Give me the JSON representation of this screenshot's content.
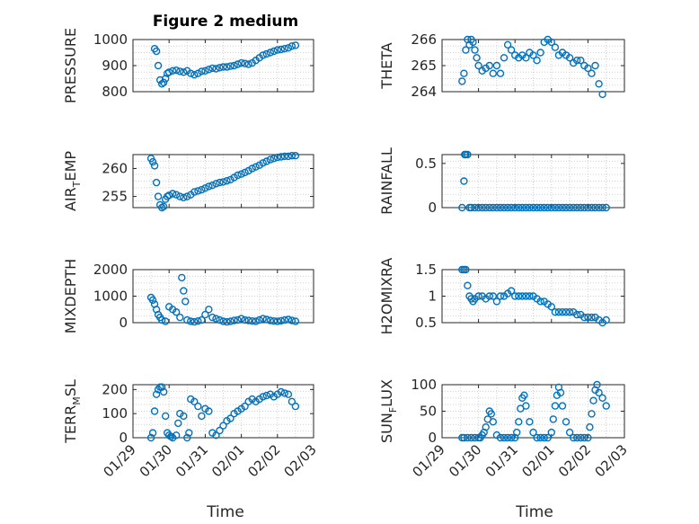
{
  "figure": {
    "title": "Figure 2 medium",
    "xlabel": "Time"
  },
  "colors": {
    "marker": "#0072bd",
    "axis": "#262626",
    "grid": "#d0d0d0"
  },
  "chart_data": [
    {
      "type": "scatter",
      "key": "pressure",
      "ylabel": "PRESSURE",
      "ylim": [
        800,
        1000
      ],
      "yticks": [
        "800",
        "900",
        "1000"
      ],
      "yticks_values": [
        800,
        900,
        1000
      ],
      "xlim": [
        0,
        5
      ],
      "xticks": [
        "01/29",
        "01/30",
        "01/31",
        "02/01",
        "02/02",
        "02/03"
      ],
      "show_xticks": false,
      "x": [
        0.6,
        0.65,
        0.7,
        0.75,
        0.8,
        0.85,
        0.9,
        0.95,
        1.0,
        1.1,
        1.2,
        1.3,
        1.4,
        1.5,
        1.6,
        1.7,
        1.8,
        1.9,
        2.0,
        2.1,
        2.2,
        2.3,
        2.4,
        2.5,
        2.6,
        2.7,
        2.8,
        2.9,
        3.0,
        3.1,
        3.2,
        3.3,
        3.4,
        3.5,
        3.6,
        3.7,
        3.8,
        3.9,
        4.0,
        4.1,
        4.2,
        4.3,
        4.4,
        4.5
      ],
      "y": [
        965,
        955,
        900,
        845,
        830,
        835,
        850,
        870,
        875,
        880,
        882,
        878,
        875,
        880,
        870,
        865,
        870,
        878,
        880,
        885,
        890,
        888,
        892,
        895,
        895,
        898,
        900,
        905,
        910,
        908,
        905,
        910,
        920,
        930,
        940,
        945,
        950,
        955,
        960,
        962,
        965,
        968,
        975,
        978
      ]
    },
    {
      "type": "scatter",
      "key": "theta",
      "ylabel": "THETA",
      "ylim": [
        264,
        266
      ],
      "yticks": [
        "264",
        "265",
        "266"
      ],
      "yticks_values": [
        264,
        265,
        266
      ],
      "xlim": [
        0,
        5
      ],
      "xticks": [
        "01/29",
        "01/30",
        "01/31",
        "02/01",
        "02/02",
        "02/03"
      ],
      "show_xticks": false,
      "x": [
        0.55,
        0.6,
        0.65,
        0.7,
        0.75,
        0.8,
        0.85,
        0.9,
        0.95,
        1.0,
        1.1,
        1.2,
        1.3,
        1.4,
        1.5,
        1.6,
        1.7,
        1.8,
        1.9,
        2.0,
        2.1,
        2.2,
        2.3,
        2.4,
        2.5,
        2.6,
        2.7,
        2.8,
        2.9,
        3.0,
        3.1,
        3.2,
        3.3,
        3.4,
        3.5,
        3.6,
        3.7,
        3.8,
        3.9,
        4.0,
        4.1,
        4.2,
        4.3,
        4.4
      ],
      "y": [
        264.4,
        264.7,
        265.6,
        266.0,
        265.8,
        266.0,
        265.9,
        265.6,
        265.3,
        265.0,
        264.8,
        264.9,
        265.0,
        264.7,
        265.0,
        264.7,
        265.3,
        265.8,
        265.6,
        265.4,
        265.3,
        265.4,
        265.3,
        265.5,
        265.4,
        265.2,
        265.5,
        265.9,
        266.0,
        265.9,
        265.7,
        265.4,
        265.5,
        265.4,
        265.3,
        265.1,
        265.2,
        265.2,
        265.0,
        264.9,
        264.7,
        265.0,
        264.3,
        263.9
      ]
    },
    {
      "type": "scatter",
      "key": "air_temp",
      "ylabel": "AIR_TEMP",
      "ylabel_main": "AIR",
      "ylabel_sub": "T",
      "ylabel_rest": "EMP",
      "ylim": [
        253,
        262
      ],
      "yticks": [
        "255",
        "260"
      ],
      "yticks_values": [
        255,
        260
      ],
      "xlim": [
        0,
        5
      ],
      "xticks": [
        "01/29",
        "01/30",
        "01/31",
        "02/01",
        "02/02",
        "02/03"
      ],
      "show_xticks": false,
      "x": [
        0.5,
        0.55,
        0.6,
        0.65,
        0.7,
        0.75,
        0.8,
        0.85,
        0.9,
        0.95,
        1.0,
        1.1,
        1.2,
        1.3,
        1.4,
        1.5,
        1.6,
        1.7,
        1.8,
        1.9,
        2.0,
        2.1,
        2.2,
        2.3,
        2.4,
        2.5,
        2.6,
        2.7,
        2.8,
        2.9,
        3.0,
        3.1,
        3.2,
        3.3,
        3.4,
        3.5,
        3.6,
        3.7,
        3.8,
        3.9,
        4.0,
        4.1,
        4.2,
        4.3,
        4.4,
        4.5
      ],
      "y": [
        261.8,
        261.2,
        260.5,
        257.5,
        255.0,
        253.5,
        253.0,
        253.2,
        254.5,
        255.0,
        255.2,
        255.5,
        255.3,
        255.0,
        254.8,
        255.0,
        255.3,
        255.8,
        256.0,
        256.2,
        256.5,
        256.8,
        257.0,
        257.3,
        257.5,
        257.6,
        257.8,
        258.0,
        258.4,
        258.8,
        259.0,
        259.3,
        259.6,
        260.0,
        260.3,
        260.6,
        261.0,
        261.3,
        261.6,
        261.8,
        262.0,
        262.1,
        262.2,
        262.2,
        262.3,
        262.3
      ]
    },
    {
      "type": "scatter",
      "key": "rainfall",
      "ylabel": "RAINFALL",
      "ylim": [
        0,
        0.6
      ],
      "yticks": [
        "0",
        "0.5"
      ],
      "yticks_values": [
        0,
        0.5
      ],
      "xlim": [
        0,
        5
      ],
      "xticks": [
        "01/29",
        "01/30",
        "01/31",
        "02/01",
        "02/02",
        "02/03"
      ],
      "show_xticks": false,
      "x": [
        0.55,
        0.6,
        0.62,
        0.65,
        0.7,
        0.75,
        0.8,
        0.9,
        1.0,
        1.1,
        1.2,
        1.3,
        1.4,
        1.5,
        1.6,
        1.7,
        1.8,
        1.9,
        2.0,
        2.1,
        2.2,
        2.3,
        2.4,
        2.5,
        2.6,
        2.7,
        2.8,
        2.9,
        3.0,
        3.1,
        3.2,
        3.3,
        3.4,
        3.5,
        3.6,
        3.7,
        3.8,
        3.9,
        4.0,
        4.1,
        4.2,
        4.3,
        4.4,
        4.5
      ],
      "y": [
        0,
        0.3,
        0.6,
        0.6,
        0.6,
        0,
        0,
        0,
        0,
        0,
        0,
        0,
        0,
        0,
        0,
        0,
        0,
        0,
        0,
        0,
        0,
        0,
        0,
        0,
        0,
        0,
        0,
        0,
        0,
        0,
        0,
        0,
        0,
        0,
        0,
        0,
        0,
        0,
        0,
        0,
        0,
        0,
        0,
        0
      ]
    },
    {
      "type": "scatter",
      "key": "mixdepth",
      "ylabel": "MIXDEPTH",
      "ylim": [
        0,
        2000
      ],
      "yticks": [
        "0",
        "1000",
        "2000"
      ],
      "yticks_values": [
        0,
        1000,
        2000
      ],
      "xlim": [
        0,
        5
      ],
      "xticks": [
        "01/29",
        "01/30",
        "01/31",
        "02/01",
        "02/02",
        "02/03"
      ],
      "show_xticks": false,
      "x": [
        0.5,
        0.55,
        0.6,
        0.65,
        0.7,
        0.75,
        0.8,
        0.9,
        1.0,
        1.1,
        1.2,
        1.3,
        1.35,
        1.4,
        1.45,
        1.5,
        1.6,
        1.7,
        1.8,
        1.9,
        2.0,
        2.1,
        2.2,
        2.3,
        2.4,
        2.5,
        2.6,
        2.7,
        2.8,
        2.9,
        3.0,
        3.1,
        3.2,
        3.3,
        3.4,
        3.5,
        3.6,
        3.7,
        3.8,
        3.9,
        4.0,
        4.1,
        4.2,
        4.3,
        4.4,
        4.5
      ],
      "y": [
        950,
        850,
        700,
        500,
        300,
        200,
        100,
        50,
        600,
        500,
        400,
        200,
        1700,
        1200,
        800,
        100,
        50,
        30,
        60,
        100,
        300,
        500,
        200,
        150,
        100,
        50,
        30,
        50,
        80,
        100,
        150,
        100,
        80,
        60,
        50,
        100,
        150,
        120,
        80,
        60,
        50,
        70,
        100,
        120,
        80,
        50
      ]
    },
    {
      "type": "scatter",
      "key": "h2omixra",
      "ylabel": "H2OMIXRA",
      "ylim": [
        0.5,
        1.5
      ],
      "yticks": [
        "0.5",
        "1",
        "1.5"
      ],
      "yticks_values": [
        0.5,
        1,
        1.5
      ],
      "xlim": [
        0,
        5
      ],
      "xticks": [
        "01/29",
        "01/30",
        "01/31",
        "02/01",
        "02/02",
        "02/03"
      ],
      "show_xticks": false,
      "x": [
        0.55,
        0.6,
        0.65,
        0.7,
        0.75,
        0.8,
        0.85,
        0.9,
        1.0,
        1.1,
        1.2,
        1.3,
        1.4,
        1.5,
        1.6,
        1.7,
        1.8,
        1.9,
        2.0,
        2.1,
        2.2,
        2.3,
        2.4,
        2.5,
        2.6,
        2.7,
        2.8,
        2.9,
        3.0,
        3.1,
        3.2,
        3.3,
        3.4,
        3.5,
        3.6,
        3.7,
        3.8,
        3.9,
        4.0,
        4.1,
        4.2,
        4.3,
        4.4,
        4.5
      ],
      "y": [
        1.5,
        1.5,
        1.5,
        1.2,
        1.0,
        0.95,
        0.9,
        0.95,
        1.0,
        1.0,
        0.95,
        1.0,
        1.0,
        0.9,
        1.0,
        1.0,
        1.05,
        1.1,
        1.0,
        1.0,
        1.0,
        1.0,
        1.0,
        1.0,
        0.95,
        0.9,
        0.9,
        0.85,
        0.8,
        0.7,
        0.7,
        0.7,
        0.7,
        0.7,
        0.7,
        0.65,
        0.65,
        0.6,
        0.6,
        0.6,
        0.6,
        0.55,
        0.5,
        0.55
      ]
    },
    {
      "type": "scatter",
      "key": "terr_msl",
      "ylabel": "TERR_MSL",
      "ylabel_main": "TERR",
      "ylabel_sub": "M",
      "ylabel_rest": "SL",
      "ylim": [
        0,
        220
      ],
      "yticks": [
        "0",
        "100",
        "200"
      ],
      "yticks_values": [
        0,
        100,
        200
      ],
      "xlim": [
        0,
        5
      ],
      "xticks": [
        "01/29",
        "01/30",
        "01/31",
        "02/01",
        "02/02",
        "02/03"
      ],
      "show_xticks": true,
      "x": [
        0.5,
        0.55,
        0.6,
        0.65,
        0.7,
        0.75,
        0.8,
        0.85,
        0.9,
        0.95,
        1.0,
        1.05,
        1.1,
        1.2,
        1.25,
        1.3,
        1.4,
        1.5,
        1.55,
        1.6,
        1.7,
        1.8,
        1.9,
        2.0,
        2.1,
        2.2,
        2.3,
        2.4,
        2.5,
        2.6,
        2.7,
        2.8,
        2.9,
        3.0,
        3.1,
        3.2,
        3.3,
        3.4,
        3.5,
        3.6,
        3.7,
        3.8,
        3.9,
        4.0,
        4.1,
        4.2,
        4.3,
        4.4,
        4.5
      ],
      "y": [
        0,
        20,
        110,
        180,
        200,
        210,
        210,
        190,
        90,
        20,
        10,
        5,
        0,
        10,
        60,
        100,
        90,
        0,
        20,
        160,
        150,
        130,
        90,
        120,
        110,
        20,
        10,
        30,
        50,
        70,
        80,
        100,
        110,
        120,
        130,
        150,
        160,
        150,
        160,
        170,
        175,
        180,
        170,
        180,
        190,
        185,
        180,
        150,
        130
      ]
    },
    {
      "type": "scatter",
      "key": "sun_flux",
      "ylabel": "SUN_FLUX",
      "ylabel_main": "SUN",
      "ylabel_sub": "F",
      "ylabel_rest": "LUX",
      "ylim": [
        0,
        100
      ],
      "yticks": [
        "0",
        "50",
        "100"
      ],
      "yticks_values": [
        0,
        50,
        100
      ],
      "xlim": [
        0,
        5
      ],
      "xticks": [
        "01/29",
        "01/30",
        "01/31",
        "02/01",
        "02/02",
        "02/03"
      ],
      "show_xticks": true,
      "x": [
        0.55,
        0.6,
        0.7,
        0.8,
        0.9,
        1.0,
        1.05,
        1.1,
        1.15,
        1.2,
        1.25,
        1.3,
        1.35,
        1.4,
        1.5,
        1.6,
        1.7,
        1.8,
        1.9,
        2.0,
        2.05,
        2.1,
        2.15,
        2.2,
        2.25,
        2.3,
        2.4,
        2.5,
        2.6,
        2.7,
        2.8,
        2.9,
        3.0,
        3.05,
        3.1,
        3.15,
        3.2,
        3.25,
        3.3,
        3.4,
        3.5,
        3.6,
        3.7,
        3.8,
        3.9,
        4.0,
        4.05,
        4.1,
        4.15,
        4.2,
        4.25,
        4.3,
        4.4,
        4.5
      ],
      "y": [
        0,
        0,
        0,
        0,
        0,
        0,
        0,
        5,
        10,
        20,
        35,
        50,
        45,
        30,
        5,
        0,
        0,
        0,
        0,
        0,
        10,
        30,
        55,
        75,
        80,
        60,
        30,
        10,
        0,
        0,
        0,
        0,
        10,
        35,
        60,
        80,
        95,
        85,
        60,
        30,
        10,
        0,
        0,
        0,
        0,
        0,
        20,
        45,
        70,
        90,
        100,
        85,
        75,
        60
      ]
    }
  ]
}
